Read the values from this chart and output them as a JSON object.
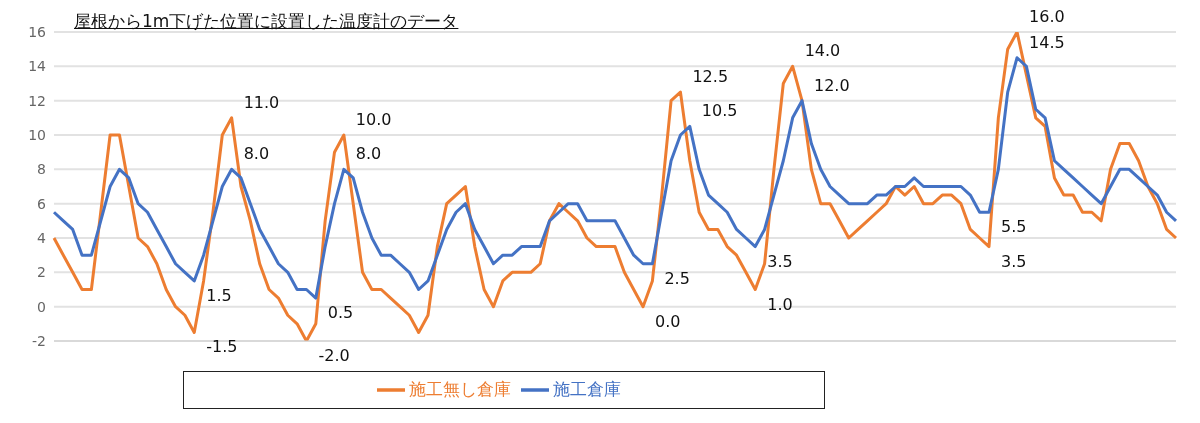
{
  "chart_data": {
    "type": "line",
    "title": "屋根から1m下げた位置に設置した温度計のデータ",
    "categories": [
      null,
      null,
      null,
      null,
      null,
      null,
      null,
      null,
      null,
      null,
      null,
      null,
      null,
      null,
      null,
      null,
      null,
      null,
      null,
      null,
      null,
      null,
      null,
      null,
      null,
      null,
      null,
      null,
      null,
      null,
      null,
      null,
      null,
      null,
      null,
      null,
      null,
      null,
      null,
      null,
      null,
      null,
      null,
      null,
      null,
      null,
      null,
      null,
      null,
      null,
      null,
      null,
      null,
      null,
      null,
      null,
      null,
      null,
      null,
      null,
      null,
      null,
      null,
      null,
      null,
      null,
      null,
      null,
      null,
      null,
      null,
      null,
      null,
      null,
      null,
      null,
      null,
      null,
      null,
      null,
      null,
      null,
      null,
      null,
      null,
      null,
      null,
      null,
      null,
      null,
      null,
      null,
      null,
      null,
      null,
      null,
      null,
      null,
      null,
      null,
      null,
      null,
      null,
      null,
      null,
      null,
      null,
      null,
      null,
      null,
      null,
      null,
      null,
      null,
      null,
      null,
      null,
      null,
      null,
      null,
      null
    ],
    "ylim": [
      -2,
      16
    ],
    "yticks": [
      -2,
      0,
      2,
      4,
      6,
      8,
      10,
      12,
      14,
      16
    ],
    "grid": "y",
    "legend": "bottom",
    "series": [
      {
        "name": "施工無し倉庫",
        "color": "#ed7d31",
        "values": [
          4,
          3,
          2,
          1,
          1,
          5.5,
          10,
          10,
          7,
          4,
          3.5,
          2.5,
          1,
          0,
          -0.5,
          -1.5,
          1.5,
          5.5,
          10,
          11,
          7,
          5,
          2.5,
          1,
          0.5,
          -0.5,
          -1,
          -2,
          -1,
          5,
          9,
          10,
          6,
          2,
          1,
          1,
          0.5,
          0,
          -0.5,
          -1.5,
          -0.5,
          3.5,
          6,
          6.5,
          7,
          3.5,
          1,
          0,
          1.5,
          2,
          2,
          2,
          2.5,
          5,
          6,
          5.5,
          5,
          4,
          3.5,
          3.5,
          3.5,
          2,
          1,
          0,
          1.5,
          6.5,
          12,
          12.5,
          8.5,
          5.5,
          4.5,
          4.5,
          3.5,
          3,
          2,
          1,
          2.5,
          8,
          13,
          14,
          12,
          8,
          6,
          6,
          5,
          4,
          4.5,
          5,
          5.5,
          6,
          7,
          6.5,
          7,
          6,
          6,
          6.5,
          6.5,
          6,
          4.5,
          4,
          3.5,
          11,
          15,
          16,
          13.5,
          11,
          10.5,
          7.5,
          6.5,
          6.5,
          5.5,
          5.5,
          5,
          8,
          9.5,
          9.5,
          8.5,
          7,
          6,
          4.5,
          4
        ],
        "value_labels": [
          null,
          null,
          null,
          null,
          null,
          null,
          null,
          null,
          null,
          null,
          null,
          null,
          null,
          null,
          null,
          "-1.5",
          null,
          null,
          null,
          "11.0",
          null,
          null,
          null,
          null,
          null,
          null,
          null,
          "-2.0",
          null,
          null,
          null,
          "10.0",
          null,
          null,
          null,
          null,
          null,
          null,
          null,
          null,
          null,
          null,
          null,
          null,
          null,
          null,
          null,
          null,
          null,
          null,
          null,
          null,
          null,
          null,
          null,
          null,
          null,
          null,
          null,
          null,
          null,
          null,
          null,
          "0.0",
          null,
          null,
          null,
          "12.5",
          null,
          null,
          null,
          null,
          null,
          null,
          null,
          "1.0",
          null,
          null,
          null,
          "14.0",
          null,
          null,
          null,
          null,
          null,
          null,
          null,
          null,
          null,
          null,
          null,
          null,
          null,
          null,
          null,
          null,
          null,
          null,
          null,
          null,
          "3.5",
          null,
          null,
          "16.0",
          null,
          null,
          null,
          null,
          null,
          null,
          null,
          null,
          null,
          null,
          null,
          null,
          null,
          null,
          null,
          null,
          null
        ]
      },
      {
        "name": "施工倉庫",
        "color": "#4472c4",
        "values": [
          5.5,
          5,
          4.5,
          3,
          3,
          5,
          7,
          8,
          7.5,
          6,
          5.5,
          4.5,
          3.5,
          2.5,
          2,
          1.5,
          3,
          5,
          7,
          8,
          7.5,
          6,
          4.5,
          3.5,
          2.5,
          2,
          1,
          1,
          0.5,
          3.5,
          6,
          8,
          7.5,
          5.5,
          4,
          3,
          3,
          2.5,
          2,
          1,
          1.5,
          3,
          4.5,
          5.5,
          6,
          4.5,
          3.5,
          2.5,
          3,
          3,
          3.5,
          3.5,
          3.5,
          5,
          5.5,
          6,
          6,
          5,
          5,
          5,
          5,
          4,
          3,
          2.5,
          2.5,
          5.5,
          8.5,
          10,
          10.5,
          8,
          6.5,
          6,
          5.5,
          4.5,
          4,
          3.5,
          4.5,
          6.5,
          8.5,
          11,
          12,
          9.5,
          8,
          7,
          6.5,
          6,
          6,
          6,
          6.5,
          6.5,
          7,
          7,
          7.5,
          7,
          7,
          7,
          7,
          7,
          6.5,
          5.5,
          5.5,
          8,
          12.5,
          14.5,
          14,
          11.5,
          11,
          8.5,
          8,
          7.5,
          7,
          6.5,
          6,
          7,
          8,
          8,
          7.5,
          7,
          6.5,
          5.5,
          5
        ],
        "value_labels": [
          null,
          null,
          null,
          null,
          null,
          null,
          null,
          null,
          null,
          null,
          null,
          null,
          null,
          null,
          null,
          "1.5",
          null,
          null,
          null,
          "8.0",
          null,
          null,
          null,
          null,
          null,
          null,
          null,
          null,
          "0.5",
          null,
          null,
          "8.0",
          null,
          null,
          null,
          null,
          null,
          null,
          null,
          null,
          null,
          null,
          null,
          null,
          null,
          null,
          null,
          null,
          null,
          null,
          null,
          null,
          null,
          null,
          null,
          null,
          null,
          null,
          null,
          null,
          null,
          null,
          null,
          null,
          "2.5",
          null,
          null,
          null,
          "10.5",
          null,
          null,
          null,
          null,
          null,
          null,
          "3.5",
          null,
          null,
          null,
          null,
          "12.0",
          null,
          null,
          null,
          null,
          null,
          null,
          null,
          null,
          null,
          null,
          null,
          null,
          null,
          null,
          null,
          null,
          null,
          null,
          null,
          "5.5",
          null,
          null,
          "14.5",
          null,
          null,
          null,
          null,
          null,
          null,
          null,
          null,
          null,
          null,
          null,
          null,
          null,
          null,
          null,
          null,
          null
        ]
      }
    ]
  }
}
